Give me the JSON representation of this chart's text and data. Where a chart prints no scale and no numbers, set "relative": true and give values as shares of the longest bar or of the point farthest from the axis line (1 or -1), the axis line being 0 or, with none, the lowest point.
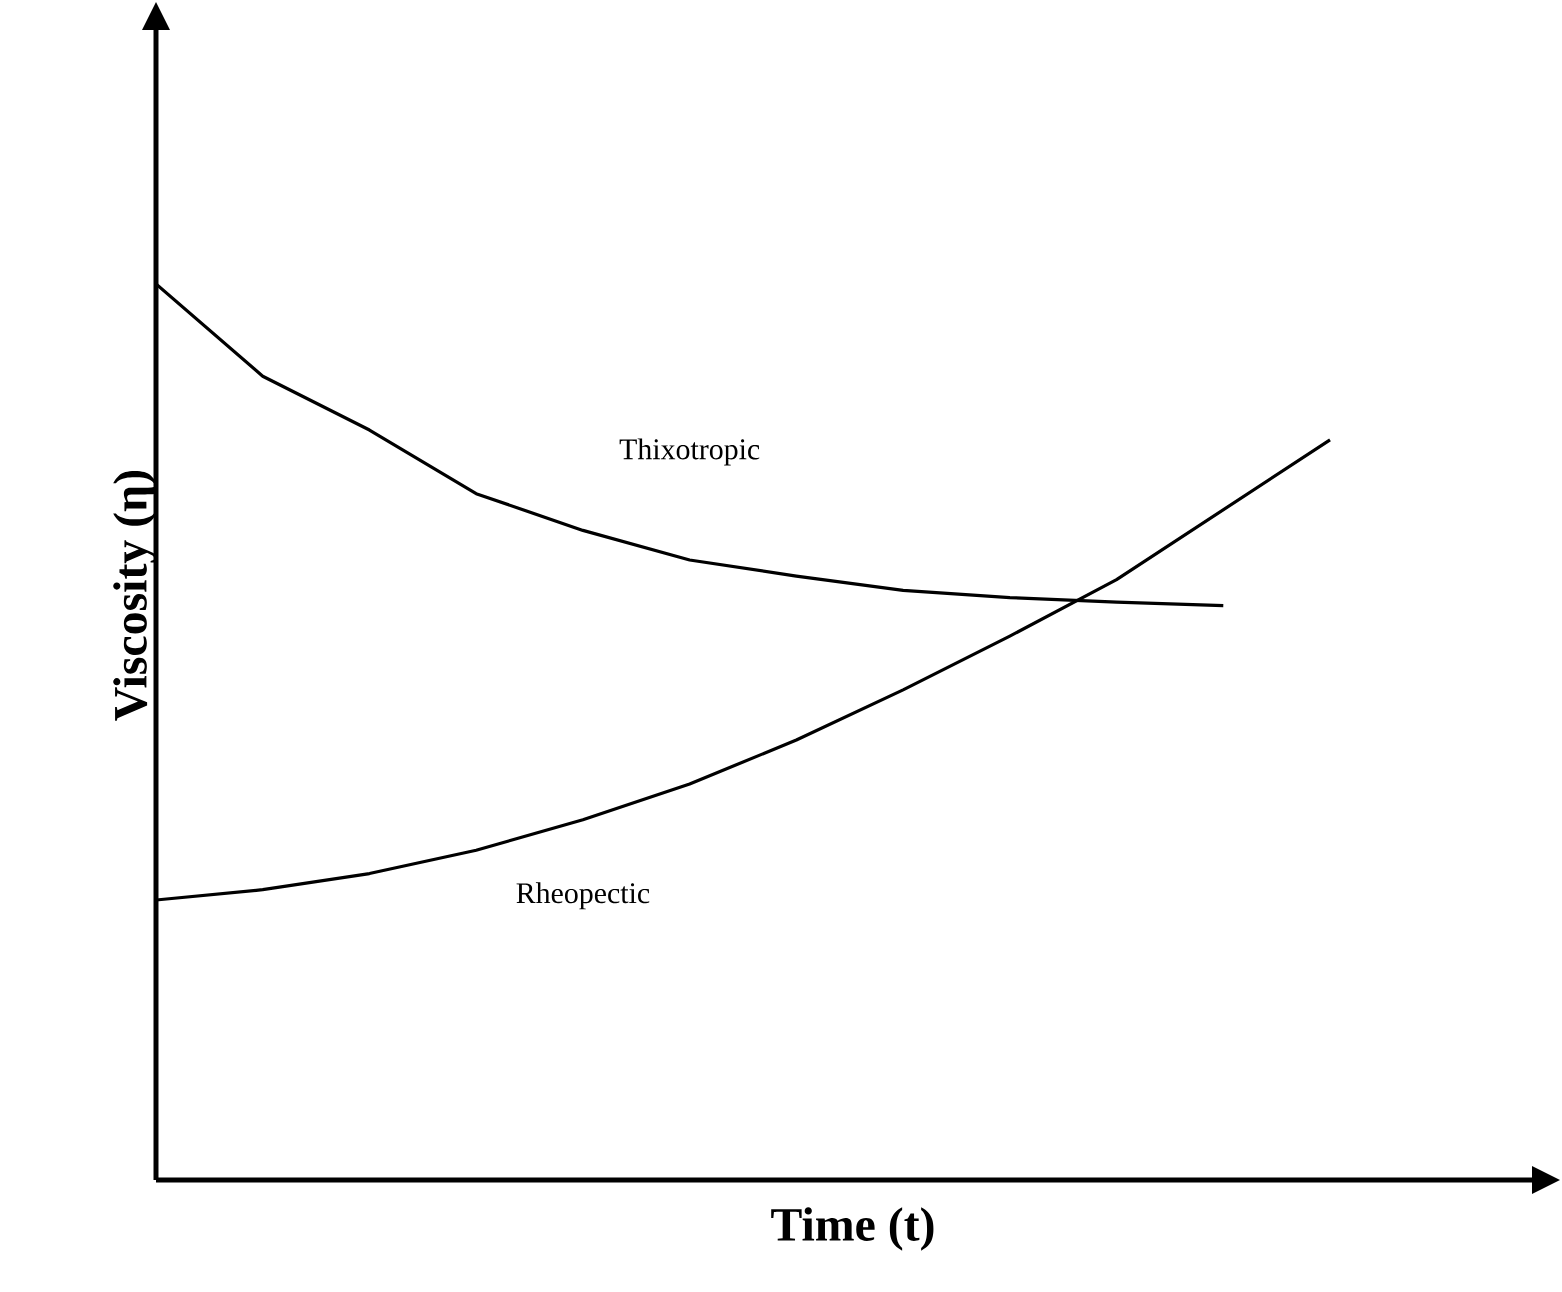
{
  "chart_data": {
    "type": "line",
    "relative": true,
    "xlabel": "Time (t)",
    "ylabel": "Viscosity (η)",
    "categories": [
      null,
      null,
      null,
      null,
      null,
      null,
      null,
      null,
      null,
      null,
      null,
      null
    ],
    "series": [
      {
        "name": "Thixotropic",
        "color": "#000000",
        "values": [
          1.0,
          0.897,
          0.837,
          0.766,
          0.725,
          0.692,
          0.674,
          0.658,
          0.65,
          0.645,
          0.641,
          null
        ]
      },
      {
        "name": "Rheopectic",
        "color": "#000000",
        "values": [
          0.3125,
          0.324,
          0.342,
          0.368,
          0.402,
          0.442,
          0.491,
          0.547,
          0.607,
          0.67,
          0.748,
          0.826
        ]
      }
    ],
    "legend": false,
    "line_style": "solid"
  }
}
